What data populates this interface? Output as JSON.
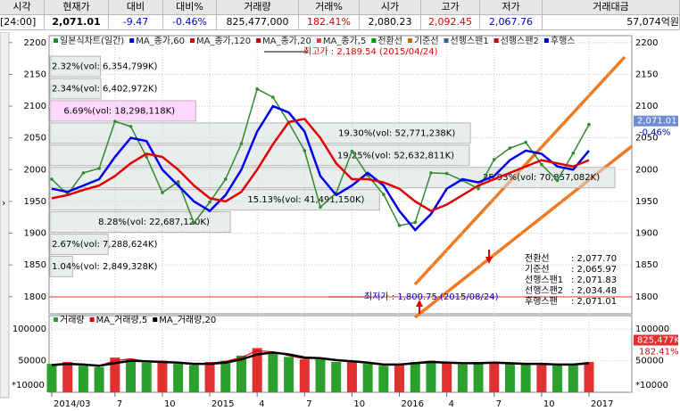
{
  "header": {
    "labels": [
      "시각",
      "현재가",
      "대비",
      "대비%",
      "거래량",
      "거래%",
      "시가",
      "고가",
      "저가",
      "거래대금"
    ],
    "values": [
      "[24:00]",
      "2,071.01",
      "-9.47",
      "-0.46%",
      "825,477,000",
      "182.41%",
      "2,080.23",
      "2,092.45",
      "2,067.76",
      "57,074억원"
    ]
  },
  "chart_data": [
    {
      "type": "line",
      "categories": [
        "2014/03",
        null,
        null,
        null,
        "7",
        null,
        null,
        "10",
        null,
        null,
        "2015",
        null,
        null,
        "4",
        null,
        null,
        "7",
        null,
        null,
        "10",
        null,
        null,
        "2016",
        null,
        null,
        "4",
        null,
        null,
        "7",
        null,
        null,
        "10",
        null,
        null,
        "2017"
      ],
      "series": [
        {
          "name": "일본식차트(일간)",
          "color": "#2e8b2e",
          "values": [
            1985,
            1961,
            1995,
            2002,
            2076,
            2068,
            2020,
            1964,
            1981,
            1916,
            1949,
            1985,
            2041,
            2127,
            2114,
            2074,
            2030,
            1941,
            1963,
            2029,
            1991,
            1961,
            1912,
            1917,
            1995,
            1994,
            1983,
            1970,
            2016,
            2034,
            2043,
            2008,
            1983,
            2026,
            2071
          ]
        },
        {
          "name": "MA_종가,60",
          "color": "#0000ee",
          "values": [
            1970,
            1965,
            1975,
            1985,
            2020,
            2050,
            2045,
            2000,
            1975,
            1950,
            1935,
            1960,
            2000,
            2060,
            2100,
            2090,
            2060,
            1990,
            1960,
            1975,
            1995,
            1975,
            1935,
            1905,
            1930,
            1970,
            1985,
            1980,
            1990,
            2015,
            2030,
            2025,
            2005,
            2000,
            2030
          ]
        },
        {
          "name": "MA_종가,120",
          "color": "#e00000",
          "values": [
            1955,
            1960,
            1968,
            1975,
            1990,
            2010,
            2025,
            2020,
            2000,
            1975,
            1955,
            1950,
            1965,
            2000,
            2040,
            2075,
            2080,
            2050,
            2010,
            1985,
            1985,
            1980,
            1970,
            1950,
            1935,
            1945,
            1960,
            1975,
            1985,
            1995,
            2005,
            2015,
            2010,
            2005,
            2015
          ]
        }
      ],
      "other_legend": [
        {
          "name": "MA_종가,20",
          "color": "#cc0000"
        },
        {
          "name": "MA_종가,5",
          "color": "#ff3333"
        },
        {
          "name": "전환선",
          "color": "#009900"
        },
        {
          "name": "기준선",
          "color": "#cc6600"
        },
        {
          "name": "선행스팬1",
          "color": "#336699"
        },
        {
          "name": "선행스팬2",
          "color": "#cc0000"
        },
        {
          "name": "후행스",
          "color": "#0000cc"
        }
      ],
      "ylim": [
        1773,
        2211
      ],
      "yticks": [
        1800,
        1850,
        1900,
        1950,
        2000,
        2050,
        2100,
        2150,
        2200
      ],
      "grid": true,
      "volume_profile": [
        {
          "label": "1.04%(vol: 2,849,328K)",
          "pct": 1.04,
          "low": 1830,
          "high": 1865
        },
        {
          "label": "2.67%(vol: 7,288,624K)",
          "pct": 2.67,
          "low": 1865,
          "high": 1900
        },
        {
          "label": "8.28%(vol: 22,687,120K)",
          "pct": 8.28,
          "low": 1900,
          "high": 1935
        },
        {
          "label": "15.13%(vol: 41,491,150K)",
          "pct": 15.13,
          "low": 1935,
          "high": 1970
        },
        {
          "label": "25.93%(vol: 70,857,082K)",
          "pct": 25.93,
          "low": 1970,
          "high": 2005
        },
        {
          "label": "19.25%(vol: 52,632,811K)",
          "pct": 19.25,
          "low": 2005,
          "high": 2040
        },
        {
          "label": "19.30%(vol: 52,771,238K)",
          "pct": 19.3,
          "low": 2040,
          "high": 2075
        },
        {
          "label": "6.69%(vol: 18,298,118K)",
          "pct": 6.69,
          "low": 2075,
          "high": 2110
        },
        {
          "label": "2.34%(vol: 6,402,972K)",
          "pct": 2.34,
          "low": 2110,
          "high": 2145
        },
        {
          "label": "2.32%(vol: 6,354,799K)",
          "pct": 2.32,
          "low": 2145,
          "high": 2180
        }
      ],
      "high_label": "최고가 : 2,189.54 (2015/04/24)",
      "low_label": "최저가 : 1,800.75 (2015/08/24)",
      "last": {
        "value": 2071.01,
        "label": "2,071.01",
        "change": "-0.46%"
      },
      "ichimoku": [
        {
          "name": "전환선",
          "value": ": 2,077.70"
        },
        {
          "name": "기준선",
          "value": ": 2,065.97"
        },
        {
          "name": "선행스팬1",
          "value": ": 2,071.83"
        },
        {
          "name": "선행스팬2",
          "value": ": 2,034.48"
        },
        {
          "name": "후행스팬",
          "value": ": 2,071.01"
        }
      ]
    },
    {
      "type": "bar",
      "series": [
        {
          "name": "거래량",
          "color": "#2ca02c",
          "values": [
            45000,
            48000,
            42000,
            40000,
            55000,
            52000,
            47000,
            50000,
            45000,
            43000,
            48000,
            50000,
            58000,
            70000,
            62000,
            56000,
            52000,
            55000,
            48000,
            50000,
            45000,
            42000,
            45000,
            48000,
            50000,
            46000,
            44000,
            48000,
            47000,
            45000,
            44000,
            46000,
            43000,
            44000,
            48000
          ]
        },
        {
          "name": "MA_거래량,5",
          "color": "#e00000",
          "values": [
            44000,
            46000,
            44000,
            42000,
            50000,
            53000,
            49000,
            49000,
            46000,
            44000,
            46000,
            49000,
            55000,
            66000,
            64000,
            58000,
            53000,
            54000,
            50000,
            49000,
            46000,
            43000,
            44000,
            47000,
            49000,
            47000,
            45000,
            47000,
            47000,
            45000,
            44000,
            45000,
            44000,
            44000,
            47000
          ]
        },
        {
          "name": "MA_거래량,20",
          "color": "#000000",
          "values": [
            43000,
            45000,
            44000,
            42000,
            46000,
            50000,
            49000,
            48000,
            47000,
            45000,
            45000,
            47000,
            52000,
            60000,
            63000,
            60000,
            55000,
            54000,
            51000,
            49000,
            47000,
            44000,
            44000,
            46000,
            48000,
            47000,
            46000,
            46000,
            47000,
            46000,
            45000,
            45000,
            44000,
            44000,
            46000
          ]
        }
      ],
      "ylim": [
        0,
        121400
      ],
      "yticks": [
        50000,
        100000
      ],
      "unit_label": "*10000",
      "last": {
        "value": 82547.7,
        "label": "825,477K",
        "change": "182.41%"
      }
    }
  ]
}
